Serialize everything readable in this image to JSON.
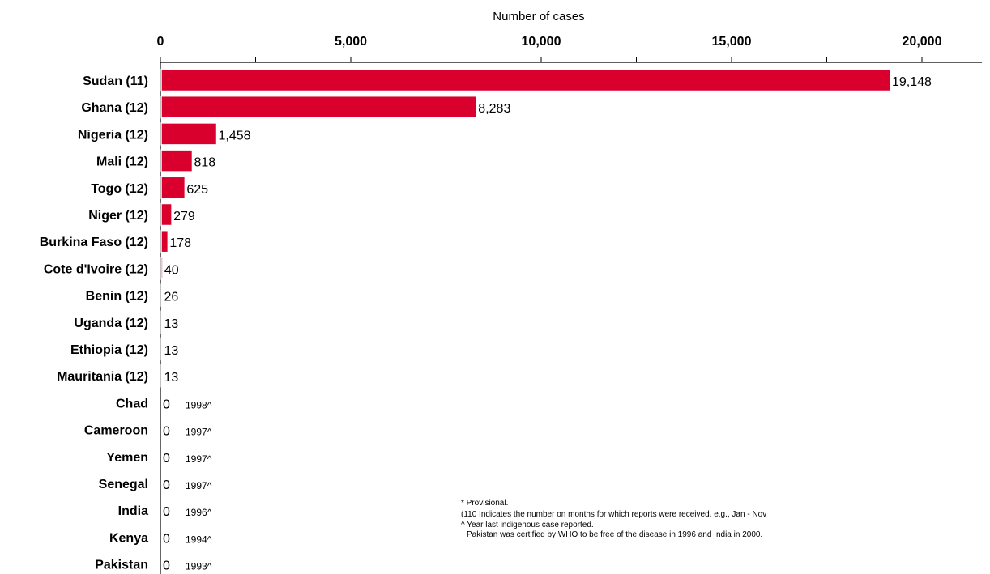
{
  "chart_data": {
    "type": "bar",
    "orientation": "horizontal",
    "xlabel": "Number of cases",
    "xlim": [
      0,
      21500
    ],
    "xticks": [
      0,
      5000,
      10000,
      15000,
      20000
    ],
    "xtick_labels": [
      "0",
      "5,000",
      "10,000",
      "15,000",
      "20,000"
    ],
    "x_axis_position": "top",
    "grid": false,
    "bar_color": "#d9002e",
    "categories": [
      "Sudan (11)",
      "Ghana (12)",
      "Nigeria (12)",
      "Mali (12)",
      "Togo (12)",
      "Niger (12)",
      "Burkina Faso (12)",
      "Cote d'Ivoire (12)",
      "Benin (12)",
      "Uganda (12)",
      "Ethiopia (12)",
      "Mauritania (12)",
      "Chad",
      "Cameroon",
      "Yemen",
      "Senegal",
      "India",
      "Kenya",
      "Pakistan"
    ],
    "values": [
      19148,
      8283,
      1458,
      818,
      625,
      279,
      178,
      40,
      26,
      13,
      13,
      13,
      0,
      0,
      0,
      0,
      0,
      0,
      0
    ],
    "value_labels": [
      "19,148",
      "8,283",
      "1,458",
      "818",
      "625",
      "279",
      "178",
      "40",
      "26",
      "13",
      "13",
      "13",
      "0",
      "0",
      "0",
      "0",
      "0",
      "0",
      "0"
    ],
    "year_notes": [
      "",
      "",
      "",
      "",
      "",
      "",
      "",
      "",
      "",
      "",
      "",
      "",
      "1998^",
      "1997^",
      "1997^",
      "1997^",
      "1996^",
      "1994^",
      "1993^"
    ],
    "footnotes": [
      "*  Provisional.",
      "(110 Indicates the number on months for which reports were received. e.g., Jan - Nov",
      "^   Year last indigenous case reported.",
      "Pakistan was certified by WHO to be free of the disease in 1996 and India in 2000."
    ]
  }
}
